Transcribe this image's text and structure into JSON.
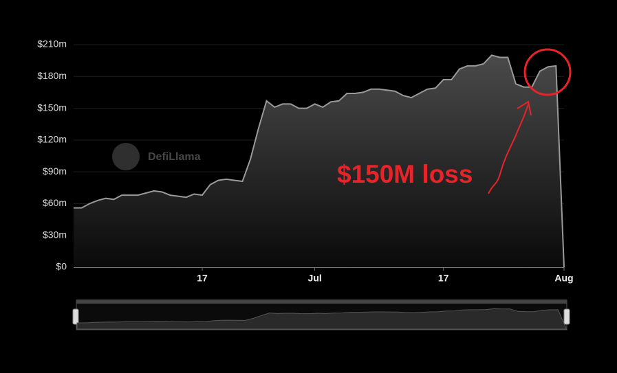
{
  "chart_data": {
    "type": "area",
    "categories": [
      null,
      null,
      null,
      null,
      null,
      null,
      null,
      null,
      null,
      null,
      null,
      null,
      null,
      null,
      null,
      null,
      "17",
      null,
      null,
      null,
      null,
      null,
      null,
      null,
      null,
      null,
      null,
      null,
      null,
      null,
      "Jul",
      null,
      null,
      null,
      null,
      null,
      null,
      null,
      null,
      null,
      null,
      null,
      null,
      null,
      null,
      null,
      "17",
      null,
      null,
      null,
      null,
      null,
      null,
      null,
      null,
      null,
      null,
      null,
      null,
      null,
      null,
      "Aug"
    ],
    "values": [
      56,
      56,
      60,
      63,
      65,
      64,
      68,
      68,
      68,
      70,
      72,
      71,
      68,
      67,
      66,
      69,
      68,
      78,
      82,
      83,
      82,
      81,
      102,
      131,
      157,
      151,
      154,
      154,
      150,
      150,
      154,
      151,
      156,
      157,
      164,
      164,
      165,
      168,
      168,
      167,
      166,
      162,
      160,
      164,
      168,
      169,
      177,
      177,
      187,
      190,
      190,
      192,
      200,
      198,
      198,
      173,
      170,
      170,
      185,
      189,
      190,
      0
    ],
    "color": "#9a9a9a",
    "ylim": [
      0,
      210
    ],
    "yticks": [
      {
        "value": 0,
        "label": "$0"
      },
      {
        "value": 30,
        "label": "$30m"
      },
      {
        "value": 60,
        "label": "$60m"
      },
      {
        "value": 90,
        "label": "$90m"
      },
      {
        "value": 120,
        "label": "$120m"
      },
      {
        "value": 150,
        "label": "$150m"
      },
      {
        "value": 180,
        "label": "$180m"
      },
      {
        "value": 210,
        "label": "$210m"
      }
    ],
    "grid": true,
    "watermark": "DefiLlama",
    "annotation": "$150M loss"
  }
}
